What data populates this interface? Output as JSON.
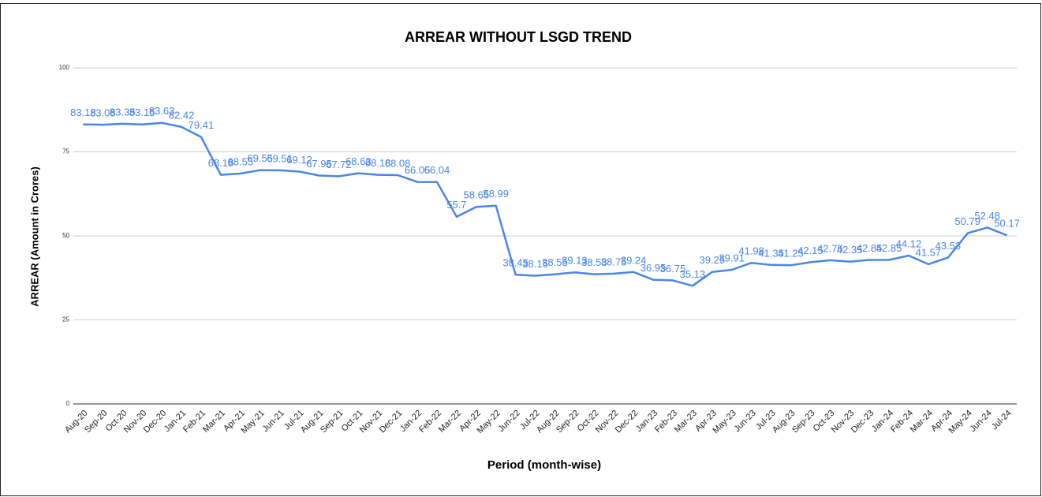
{
  "chart_data": {
    "type": "line",
    "title": "ARREAR WITHOUT LSGD TREND",
    "x_label": "Period (month-wise)",
    "y_label": "ARREAR (Amount in Crores)",
    "categories": [
      "Aug-20",
      "Sep-20",
      "Oct-20",
      "Nov-20",
      "Dec-20",
      "Jan-21",
      "Feb-21",
      "Mar-21",
      "Apr-21",
      "May-21",
      "Jun-21",
      "Jul-21",
      "Aug-21",
      "Sep-21",
      "Oct-21",
      "Nov-21",
      "Dec-21",
      "Jan-22",
      "Feb-22",
      "Mar-22",
      "Apr-22",
      "May-22",
      "Jun-22",
      "Jul-22",
      "Aug-22",
      "Sep-22",
      "Oct-22",
      "Nov-22",
      "Dec-22",
      "Jan-23",
      "Feb-23",
      "Mar-23",
      "Apr-23",
      "May-23",
      "Jun-23",
      "Jul-23",
      "Aug-23",
      "Sep-23",
      "Oct-23",
      "Nov-23",
      "Dec-23",
      "Jan-24",
      "Feb-24",
      "Mar-24",
      "Apr-24",
      "May-24",
      "Jun-24",
      "Jul-24"
    ],
    "values": [
      83.18,
      83.08,
      83.35,
      83.15,
      83.63,
      82.42,
      79.41,
      68.18,
      68.55,
      69.55,
      69.51,
      69.12,
      67.95,
      67.72,
      68.63,
      68.18,
      68.08,
      66.05,
      66.04,
      55.7,
      58.65,
      58.99,
      38.45,
      38.15,
      38.55,
      39.13,
      38.58,
      38.75,
      39.24,
      36.95,
      36.75,
      35.13,
      39.25,
      39.91,
      41.98,
      41.35,
      41.25,
      42.15,
      42.75,
      42.35,
      42.85,
      42.85,
      44.12,
      41.57,
      43.53,
      50.79,
      52.48,
      50.17
    ],
    "color": "#4a86e8",
    "ylim": [
      0,
      100
    ],
    "yticks": [
      0,
      25,
      50,
      75,
      100
    ],
    "grid": true
  }
}
